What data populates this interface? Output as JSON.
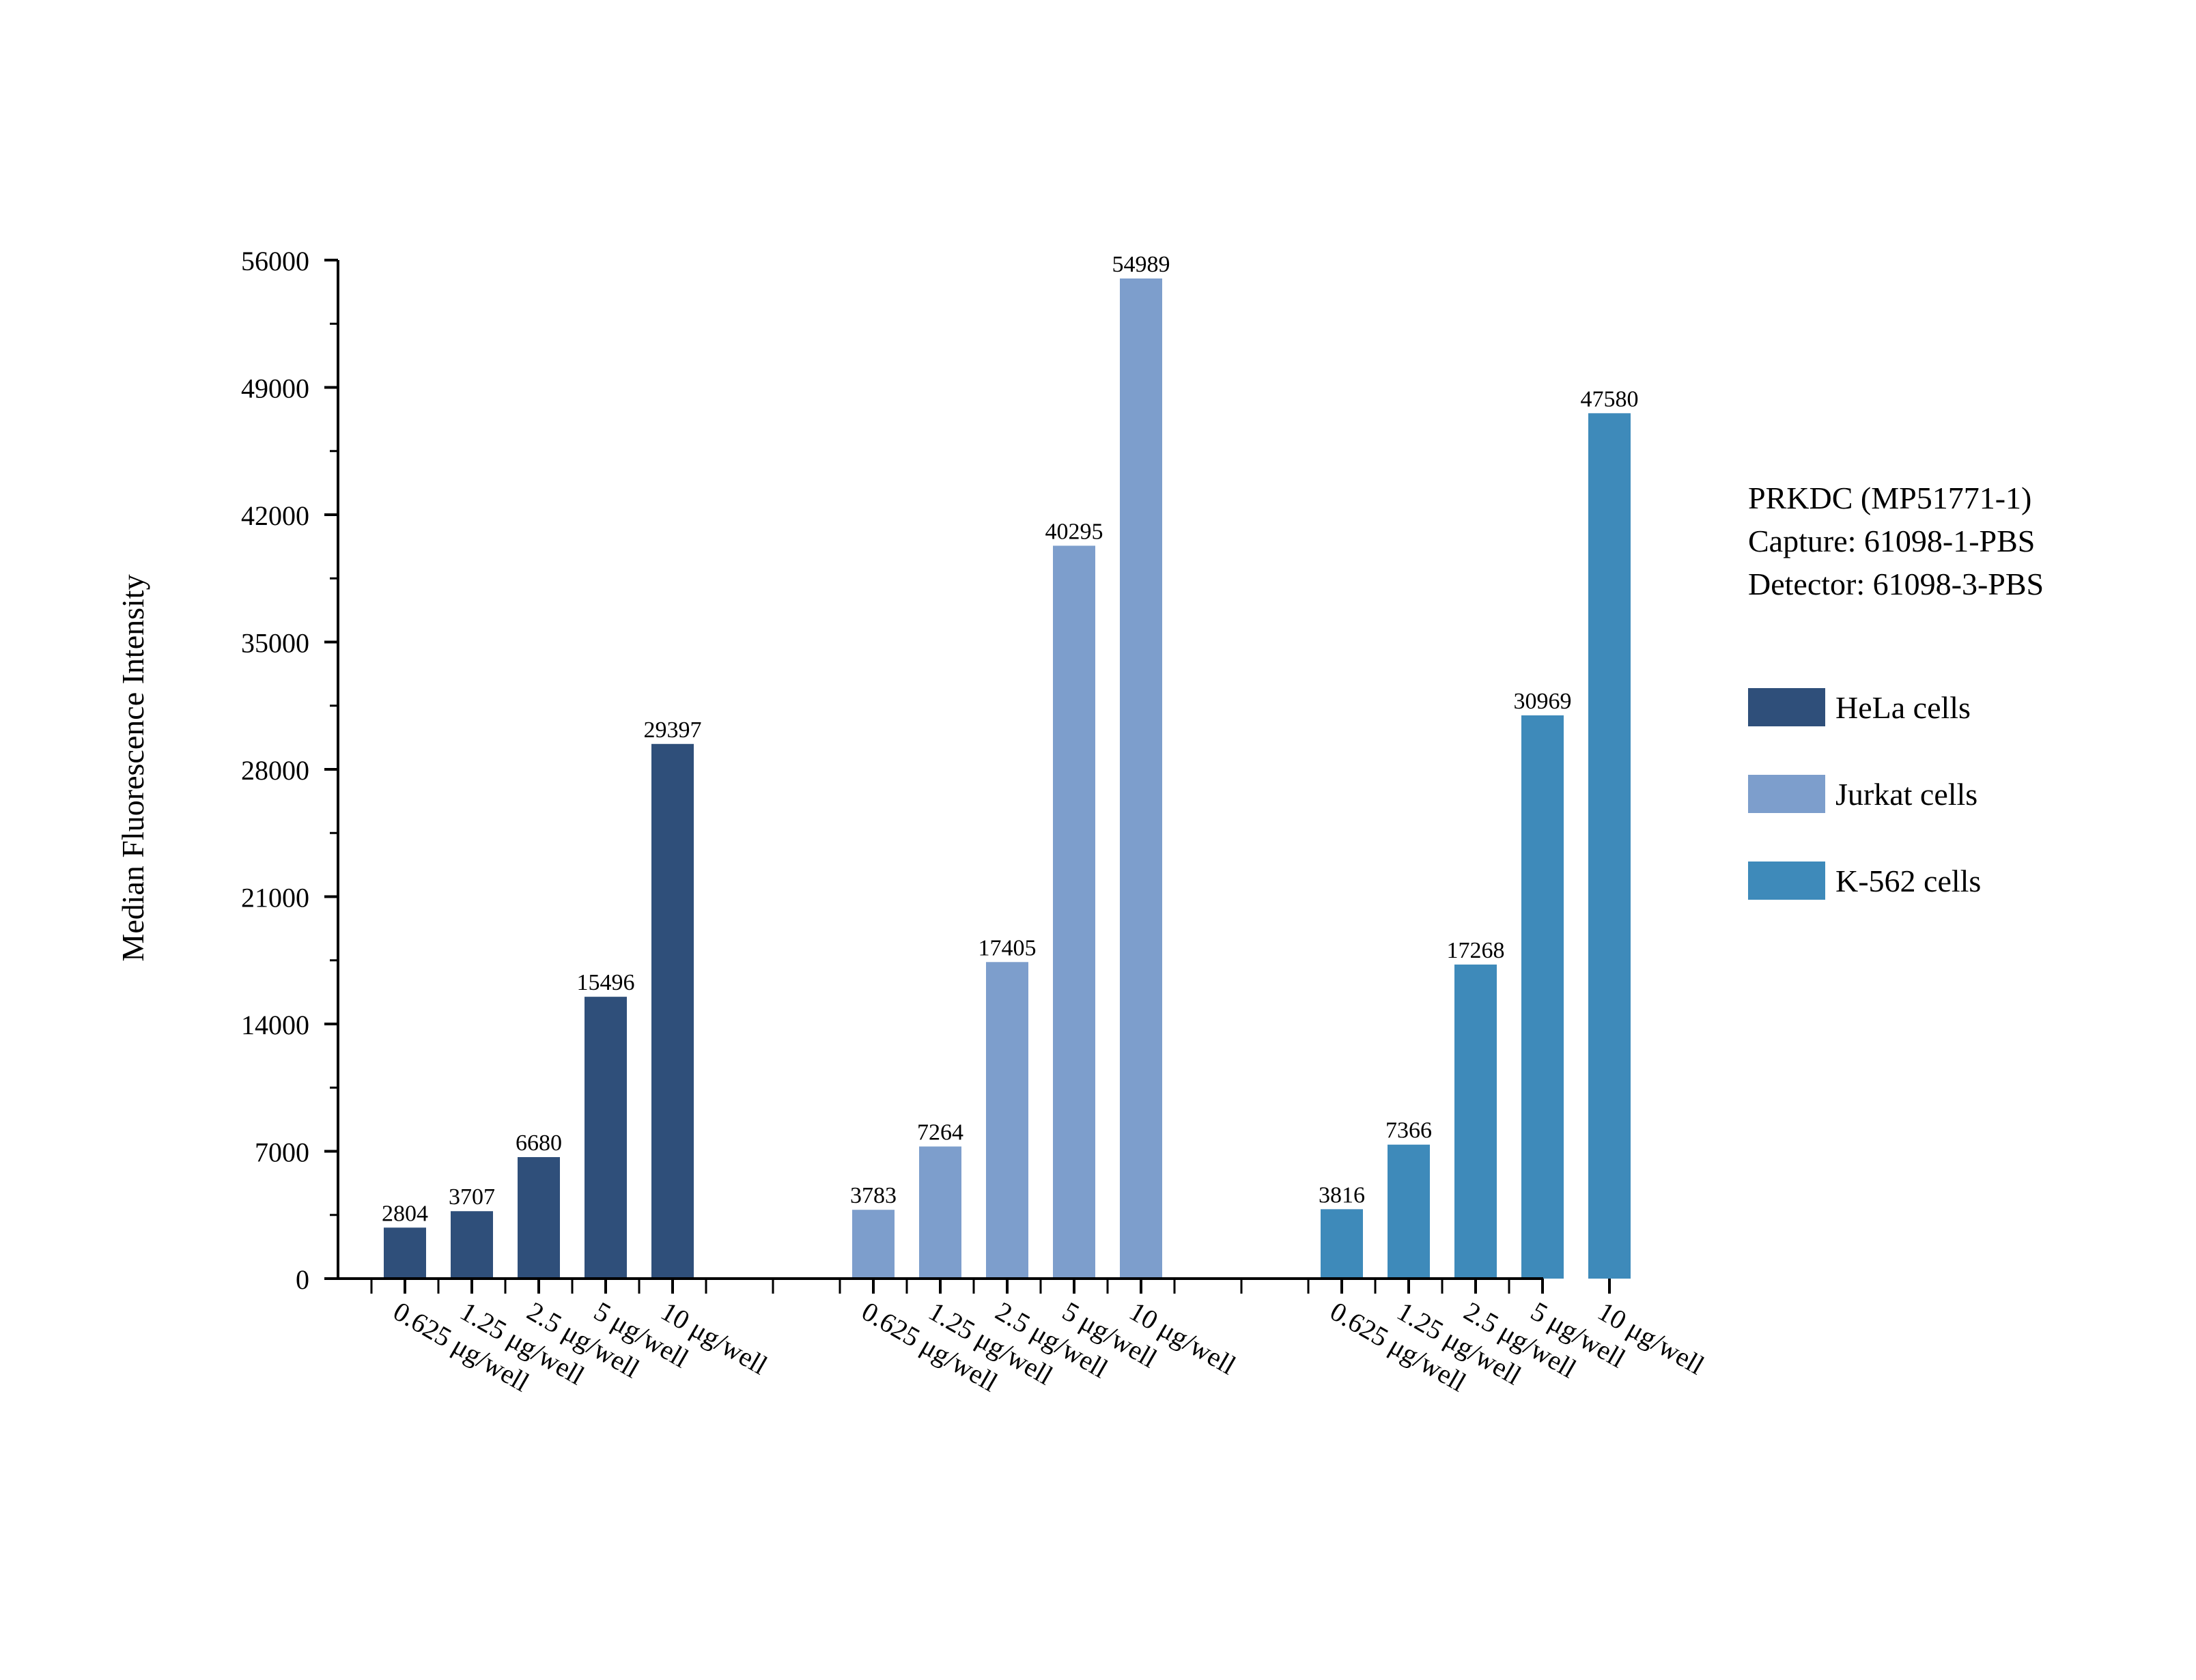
{
  "chart_data": {
    "type": "bar",
    "ylabel": "Median Fluorescence Intensity",
    "xlabel": "",
    "ylim": [
      0,
      56000
    ],
    "yticks": [
      0,
      7000,
      14000,
      21000,
      28000,
      35000,
      42000,
      49000,
      56000
    ],
    "categories": [
      "0.625 μg/well",
      "1.25 μg/well",
      "2.5 μg/well",
      "5 μg/well",
      "10 μg/well"
    ],
    "series": [
      {
        "name": "HeLa cells",
        "color": "#2f4f7a",
        "values": [
          2804,
          3707,
          6680,
          15496,
          29397
        ]
      },
      {
        "name": "Jurkat cells",
        "color": "#7d9ecc",
        "values": [
          3783,
          7264,
          17405,
          40295,
          54989
        ]
      },
      {
        "name": "K-562 cells",
        "color": "#3e8aba",
        "values": [
          3816,
          7366,
          17268,
          30969,
          47580
        ]
      }
    ],
    "grouping": "grouped-by-series",
    "data_labels": true,
    "grid": false,
    "legend_position": "right"
  },
  "annotation": {
    "lines": [
      "PRKDC (MP51771-1)",
      "Capture: 61098-1-PBS",
      "Detector: 61098-3-PBS"
    ]
  }
}
